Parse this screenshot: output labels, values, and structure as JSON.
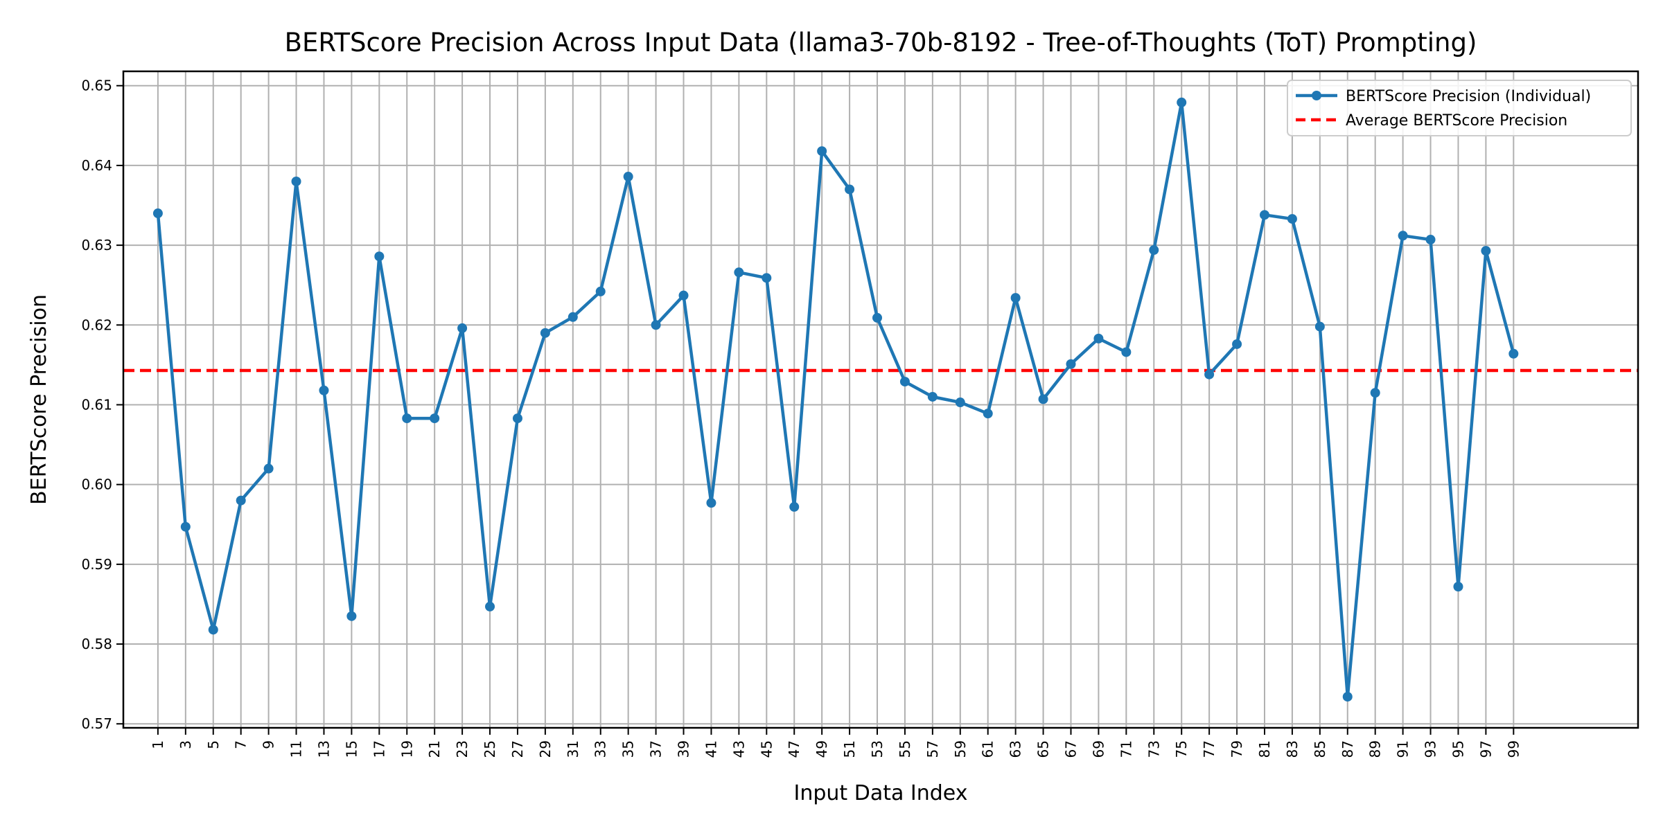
{
  "chart_data": {
    "type": "line",
    "title": "BERTScore Precision Across Input Data (llama3-70b-8192 - Tree-of-Thoughts (ToT) Prompting)",
    "xlabel": "Input Data Index",
    "ylabel": "BERTScore Precision",
    "xlim": [
      -1.5,
      108
    ],
    "ylim": [
      0.5695,
      0.6518
    ],
    "yticks": [
      0.57,
      0.58,
      0.59,
      0.6,
      0.61,
      0.62,
      0.63,
      0.64,
      0.65
    ],
    "ytick_labels": [
      "0.57",
      "0.58",
      "0.59",
      "0.60",
      "0.61",
      "0.62",
      "0.63",
      "0.64",
      "0.65"
    ],
    "xticks": [
      1,
      3,
      5,
      7,
      9,
      11,
      13,
      15,
      17,
      19,
      21,
      23,
      25,
      27,
      29,
      31,
      33,
      35,
      37,
      39,
      41,
      43,
      45,
      47,
      49,
      51,
      53,
      55,
      57,
      59,
      61,
      63,
      65,
      67,
      69,
      71,
      73,
      75,
      77,
      79,
      81,
      83,
      85,
      87,
      89,
      91,
      93,
      95,
      97,
      99
    ],
    "xtick_labels": [
      "1",
      "3",
      "5",
      "7",
      "9",
      "11",
      "13",
      "15",
      "17",
      "19",
      "21",
      "23",
      "25",
      "27",
      "29",
      "31",
      "33",
      "35",
      "37",
      "39",
      "41",
      "43",
      "45",
      "47",
      "49",
      "51",
      "53",
      "55",
      "57",
      "59",
      "61",
      "63",
      "65",
      "67",
      "69",
      "71",
      "73",
      "75",
      "77",
      "79",
      "81",
      "83",
      "85",
      "87",
      "89",
      "91",
      "93",
      "95",
      "97",
      "99"
    ],
    "grid": true,
    "legend_position": "top-right",
    "series": [
      {
        "name": "BERTScore Precision (Individual)",
        "color": "#1f77b4",
        "style": "solid-line-with-markers",
        "x": [
          1,
          3,
          5,
          7,
          9,
          11,
          13,
          15,
          17,
          19,
          21,
          23,
          25,
          27,
          29,
          31,
          33,
          35,
          37,
          39,
          41,
          43,
          45,
          47,
          49,
          51,
          53,
          55,
          57,
          59,
          61,
          63,
          65,
          67,
          69,
          71,
          73,
          75,
          77,
          79,
          81,
          83,
          85,
          87,
          89,
          91,
          93,
          95,
          97,
          99
        ],
        "values": [
          0.634,
          0.5947,
          0.5818,
          0.598,
          0.602,
          0.638,
          0.6118,
          0.5835,
          0.6286,
          0.6083,
          0.6083,
          0.6196,
          0.5847,
          0.6083,
          0.619,
          0.621,
          0.6242,
          0.6386,
          0.62,
          0.6237,
          0.5977,
          0.6266,
          0.6259,
          0.5972,
          0.6418,
          0.637,
          0.6209,
          0.6129,
          0.611,
          0.6103,
          0.6089,
          0.6234,
          0.6107,
          0.6151,
          0.6183,
          0.6166,
          0.6294,
          0.6479,
          0.6138,
          0.6176,
          0.6338,
          0.6333,
          0.6198,
          0.5734,
          0.6115,
          0.6312,
          0.6307,
          0.5872,
          0.6293,
          0.6164
        ]
      },
      {
        "name": "Average BERTScore Precision",
        "color": "#ff0000",
        "style": "dashed-line",
        "value": 0.6143
      }
    ]
  }
}
